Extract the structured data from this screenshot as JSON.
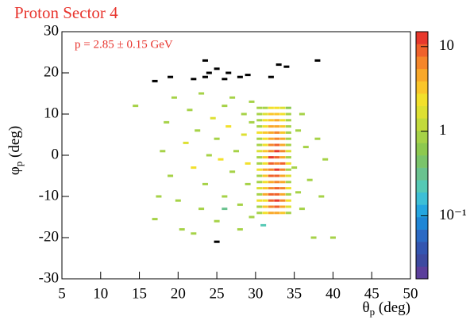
{
  "chart_data": {
    "type": "heatmap",
    "title": "Proton Sector 4",
    "annotation": "p = 2.85 ± 0.15 GeV",
    "xlabel": "θ",
    "xlabel_sub": "p",
    "xlabel_unit": " (deg)",
    "ylabel": "φ",
    "ylabel_sub": "p",
    "ylabel_unit": " (deg)",
    "xlim": [
      5,
      50
    ],
    "xticks": [
      5,
      10,
      15,
      20,
      25,
      30,
      35,
      40,
      45,
      50
    ],
    "ylim": [
      -30,
      30
    ],
    "yticks": [
      -30,
      -20,
      -10,
      0,
      10,
      20,
      30
    ],
    "zlim": [
      0.018,
      15
    ],
    "zlog": true,
    "zticks": [
      {
        "value": 0.1,
        "label": "10⁻¹"
      },
      1,
      10
    ],
    "text_color": "#e8362f",
    "underflow_color": "#000000",
    "palette": [
      "#5b3f9b",
      "#3d4aa0",
      "#3355b0",
      "#2b6ac4",
      "#1f86d6",
      "#25a6e0",
      "#3dbfd6",
      "#55c9b5",
      "#6ac28f",
      "#7ac46a",
      "#8dc94f",
      "#a6d247",
      "#c2da3c",
      "#dde032",
      "#f2e02b",
      "#fac62a",
      "#f9a829",
      "#f5862a",
      "#f0622b",
      "#e8382c"
    ],
    "cells": [
      [
        30.5,
        -14,
        1
      ],
      [
        30.5,
        -12.5,
        1
      ],
      [
        30.5,
        -11,
        2
      ],
      [
        30.5,
        -9.5,
        1
      ],
      [
        30.5,
        -8,
        1.5
      ],
      [
        30.5,
        -6.5,
        1
      ],
      [
        30.5,
        -5,
        1
      ],
      [
        30.5,
        -3.5,
        2
      ],
      [
        30.5,
        -2,
        1
      ],
      [
        30.5,
        -0.5,
        1
      ],
      [
        30.5,
        1,
        1.5
      ],
      [
        30.5,
        2.5,
        1
      ],
      [
        30.5,
        4,
        1
      ],
      [
        30.5,
        5.5,
        2
      ],
      [
        30.5,
        7,
        1
      ],
      [
        30.5,
        8.5,
        1
      ],
      [
        30.5,
        10,
        1
      ],
      [
        30.5,
        11.5,
        0.8
      ],
      [
        31.25,
        -14,
        2
      ],
      [
        31.25,
        -12.5,
        3
      ],
      [
        31.25,
        -11,
        2.5
      ],
      [
        31.25,
        -9.5,
        4
      ],
      [
        31.25,
        -8,
        3
      ],
      [
        31.25,
        -6.5,
        2
      ],
      [
        31.25,
        -5,
        3
      ],
      [
        31.25,
        -3.5,
        4
      ],
      [
        31.25,
        -2,
        2
      ],
      [
        31.25,
        -0.5,
        3
      ],
      [
        31.25,
        1,
        3
      ],
      [
        31.25,
        2.5,
        2
      ],
      [
        31.25,
        4,
        2.5
      ],
      [
        31.25,
        5.5,
        3
      ],
      [
        31.25,
        7,
        2
      ],
      [
        31.25,
        8.5,
        2
      ],
      [
        31.25,
        10,
        1.5
      ],
      [
        31.25,
        11.5,
        1
      ],
      [
        32,
        -14,
        4
      ],
      [
        32,
        -12.5,
        6
      ],
      [
        32,
        -11,
        8
      ],
      [
        32,
        -9.5,
        10
      ],
      [
        32,
        -8,
        7
      ],
      [
        32,
        -6.5,
        5
      ],
      [
        32,
        -5,
        9
      ],
      [
        32,
        -3.5,
        6
      ],
      [
        32,
        -2,
        8
      ],
      [
        32,
        -0.5,
        11
      ],
      [
        32,
        1,
        7
      ],
      [
        32,
        2.5,
        6
      ],
      [
        32,
        4,
        5
      ],
      [
        32,
        5.5,
        4
      ],
      [
        32,
        7,
        5
      ],
      [
        32,
        8.5,
        3
      ],
      [
        32,
        10,
        3
      ],
      [
        32,
        11.5,
        2
      ],
      [
        32.75,
        -14,
        5
      ],
      [
        32.75,
        -12.5,
        8
      ],
      [
        32.75,
        -11,
        12
      ],
      [
        32.75,
        -9.5,
        9
      ],
      [
        32.75,
        -8,
        10
      ],
      [
        32.75,
        -6.5,
        6
      ],
      [
        32.75,
        -5,
        8
      ],
      [
        32.75,
        -3.5,
        11
      ],
      [
        32.75,
        -2,
        7
      ],
      [
        32.75,
        -0.5,
        9
      ],
      [
        32.75,
        1,
        12
      ],
      [
        32.75,
        2.5,
        8
      ],
      [
        32.75,
        4,
        6
      ],
      [
        32.75,
        5.5,
        7
      ],
      [
        32.75,
        7,
        4
      ],
      [
        32.75,
        8.5,
        5
      ],
      [
        32.75,
        10,
        3
      ],
      [
        32.75,
        11.5,
        2
      ],
      [
        33.5,
        -14,
        3
      ],
      [
        33.5,
        -12.5,
        4
      ],
      [
        33.5,
        -11,
        6
      ],
      [
        33.5,
        -9.5,
        5
      ],
      [
        33.5,
        -8,
        7
      ],
      [
        33.5,
        -6.5,
        4
      ],
      [
        33.5,
        -5,
        5
      ],
      [
        33.5,
        -3.5,
        6
      ],
      [
        33.5,
        -2,
        8
      ],
      [
        33.5,
        -0.5,
        5
      ],
      [
        33.5,
        1,
        6
      ],
      [
        33.5,
        2.5,
        4
      ],
      [
        33.5,
        4,
        5
      ],
      [
        33.5,
        5.5,
        3
      ],
      [
        33.5,
        7,
        3
      ],
      [
        33.5,
        8.5,
        2
      ],
      [
        33.5,
        10,
        2
      ],
      [
        33.5,
        11.5,
        1.5
      ],
      [
        34.25,
        -14,
        1
      ],
      [
        34.25,
        -12.5,
        1.5
      ],
      [
        34.25,
        -11,
        2
      ],
      [
        34.25,
        -9.5,
        1
      ],
      [
        34.25,
        -8,
        2
      ],
      [
        34.25,
        -6.5,
        1
      ],
      [
        34.25,
        -5,
        1.5
      ],
      [
        34.25,
        -3.5,
        1
      ],
      [
        34.25,
        -2,
        2
      ],
      [
        34.25,
        -0.5,
        1
      ],
      [
        34.25,
        1,
        1.5
      ],
      [
        34.25,
        2.5,
        1
      ],
      [
        34.25,
        4,
        1
      ],
      [
        34.25,
        5.5,
        1
      ],
      [
        34.25,
        7,
        1
      ],
      [
        34.25,
        8.5,
        1
      ],
      [
        34.25,
        10,
        0.8
      ],
      [
        34.25,
        11.5,
        0.7
      ],
      [
        14.5,
        12,
        1
      ],
      [
        17,
        -15.5,
        0.8
      ],
      [
        17.5,
        -10,
        1
      ],
      [
        18,
        1,
        1
      ],
      [
        18.5,
        8,
        1
      ],
      [
        19,
        -5,
        1
      ],
      [
        19.5,
        14,
        1
      ],
      [
        20,
        -11,
        1
      ],
      [
        20.5,
        -18,
        1
      ],
      [
        21,
        3,
        1.5
      ],
      [
        21.5,
        11,
        1
      ],
      [
        22,
        -3,
        2
      ],
      [
        22.5,
        6,
        1
      ],
      [
        23,
        -13,
        1
      ],
      [
        23,
        15,
        1
      ],
      [
        23.5,
        -7,
        1
      ],
      [
        24,
        0,
        1
      ],
      [
        24.5,
        9,
        1.5
      ],
      [
        25,
        -16,
        1
      ],
      [
        25,
        4,
        1
      ],
      [
        25.5,
        -1,
        2
      ],
      [
        26,
        12,
        1
      ],
      [
        26,
        -10,
        1
      ],
      [
        26.5,
        7,
        2
      ],
      [
        27,
        -4,
        1
      ],
      [
        27,
        14,
        1
      ],
      [
        27.5,
        1,
        1
      ],
      [
        28,
        -12,
        1
      ],
      [
        28,
        -18,
        1
      ],
      [
        28.5,
        5,
        1.5
      ],
      [
        28.5,
        10,
        1
      ],
      [
        29,
        -7,
        1
      ],
      [
        29,
        -2,
        2
      ],
      [
        29.5,
        8,
        1
      ],
      [
        29.5,
        -15,
        1
      ],
      [
        29.5,
        13,
        1
      ],
      [
        35,
        -3,
        1
      ],
      [
        35.5,
        6,
        1
      ],
      [
        35.5,
        -9,
        1
      ],
      [
        36,
        10,
        1
      ],
      [
        36,
        -13,
        1
      ],
      [
        36.5,
        2,
        1
      ],
      [
        37,
        -6,
        1
      ],
      [
        37.5,
        -20,
        1
      ],
      [
        38,
        4,
        1
      ],
      [
        39,
        -1,
        1
      ],
      [
        40,
        -20,
        1
      ],
      [
        38.5,
        -10,
        1
      ],
      [
        22,
        -19,
        1
      ],
      [
        26,
        -13,
        0.3
      ],
      [
        31,
        -17,
        0.2
      ],
      [
        23.5,
        23,
        0.01
      ],
      [
        25,
        21,
        0.01
      ],
      [
        24,
        20,
        0.01
      ],
      [
        26.5,
        20,
        0.01
      ],
      [
        28,
        19,
        0.01
      ],
      [
        29,
        19.5,
        0.01
      ],
      [
        33,
        22,
        0.01
      ],
      [
        34,
        21.5,
        0.01
      ],
      [
        38,
        23,
        0.01
      ],
      [
        17,
        18,
        0.01
      ],
      [
        19,
        19,
        0.01
      ],
      [
        22,
        18.5,
        0.01
      ],
      [
        23.5,
        19,
        0.01
      ],
      [
        26,
        18.5,
        0.01
      ],
      [
        32,
        19,
        0.01
      ],
      [
        25,
        -21,
        0.01
      ]
    ]
  }
}
